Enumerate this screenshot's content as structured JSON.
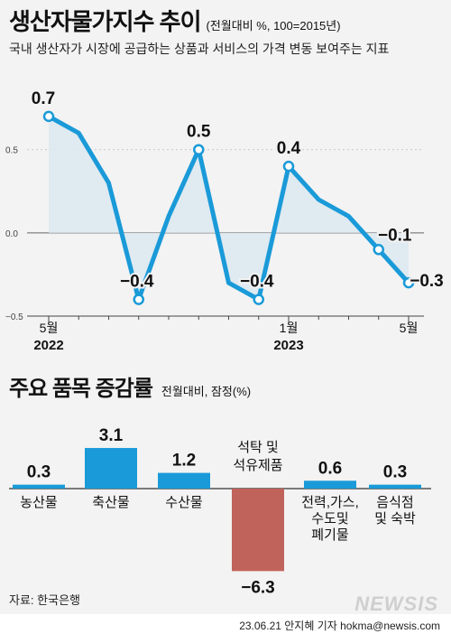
{
  "header": {
    "title": "생산자물가지수 추이",
    "unit": "(전월대비 %, 100=2015년)",
    "subtitle": "국내 생산자가 시장에 공급하는 상품과 서비스의 가격 변동 보여주는 지표"
  },
  "section2": {
    "title": "주요 품목 증감률",
    "unit": "전월대비, 잠정(%)"
  },
  "source": "자료: 한국은행",
  "credit": "23.06.21 안지혜 기자 hokma@newsis.com",
  "logo": "NEWSIS",
  "colors": {
    "line": "#1a9ad8",
    "fill": "#dde9f1",
    "bar_pos": "#1a9ad8",
    "bar_neg": "#c0635b"
  },
  "chart_data": [
    {
      "type": "line",
      "title": "생산자물가지수 추이",
      "x": [
        "2022-05",
        "2022-06",
        "2022-07",
        "2022-08",
        "2022-09",
        "2022-10",
        "2022-11",
        "2022-12",
        "2023-01",
        "2023-02",
        "2023-03",
        "2023-04",
        "2023-05"
      ],
      "values": [
        0.7,
        0.6,
        0.3,
        -0.4,
        0.1,
        0.5,
        -0.3,
        -0.4,
        0.4,
        0.2,
        0.1,
        -0.1,
        -0.3
      ],
      "labeled_points": [
        {
          "index": 0,
          "label": "0.7"
        },
        {
          "index": 3,
          "label": "−0.4"
        },
        {
          "index": 5,
          "label": "0.5"
        },
        {
          "index": 7,
          "label": "−0.4"
        },
        {
          "index": 8,
          "label": "0.4"
        },
        {
          "index": 11,
          "label": "−0.1"
        },
        {
          "index": 12,
          "label": "−0.3"
        }
      ],
      "x_ticks": [
        {
          "index": 0,
          "label": "5월",
          "sub": "2022"
        },
        {
          "index": 8,
          "label": "1월",
          "sub": "2023"
        },
        {
          "index": 12,
          "label": "5월",
          "sub": ""
        }
      ],
      "y_ticks": [
        {
          "value": 0.5,
          "label": "0.5"
        },
        {
          "value": 0,
          "label": "0.0"
        },
        {
          "value": -0.5,
          "label": "−0.5"
        }
      ],
      "ylim": [
        -0.5,
        0.9
      ]
    },
    {
      "type": "bar",
      "title": "주요 품목 증감률",
      "categories": [
        "농산물",
        "축산물",
        "수산물",
        "석탁 및 석유제품",
        "전력,가스, 수도및 폐기물",
        "음식점 및 숙박"
      ],
      "category_lines": [
        [
          "농산물"
        ],
        [
          "축산물"
        ],
        [
          "수산물"
        ],
        [
          "석탁 및",
          "석유제품"
        ],
        [
          "전력,가스,",
          "수도및",
          "폐기물"
        ],
        [
          "음식점",
          "및 숙박"
        ]
      ],
      "values": [
        0.3,
        3.1,
        1.2,
        -6.3,
        0.6,
        0.3
      ],
      "value_labels": [
        "0.3",
        "3.1",
        "1.2",
        "−6.3",
        "0.6",
        "0.3"
      ]
    }
  ]
}
